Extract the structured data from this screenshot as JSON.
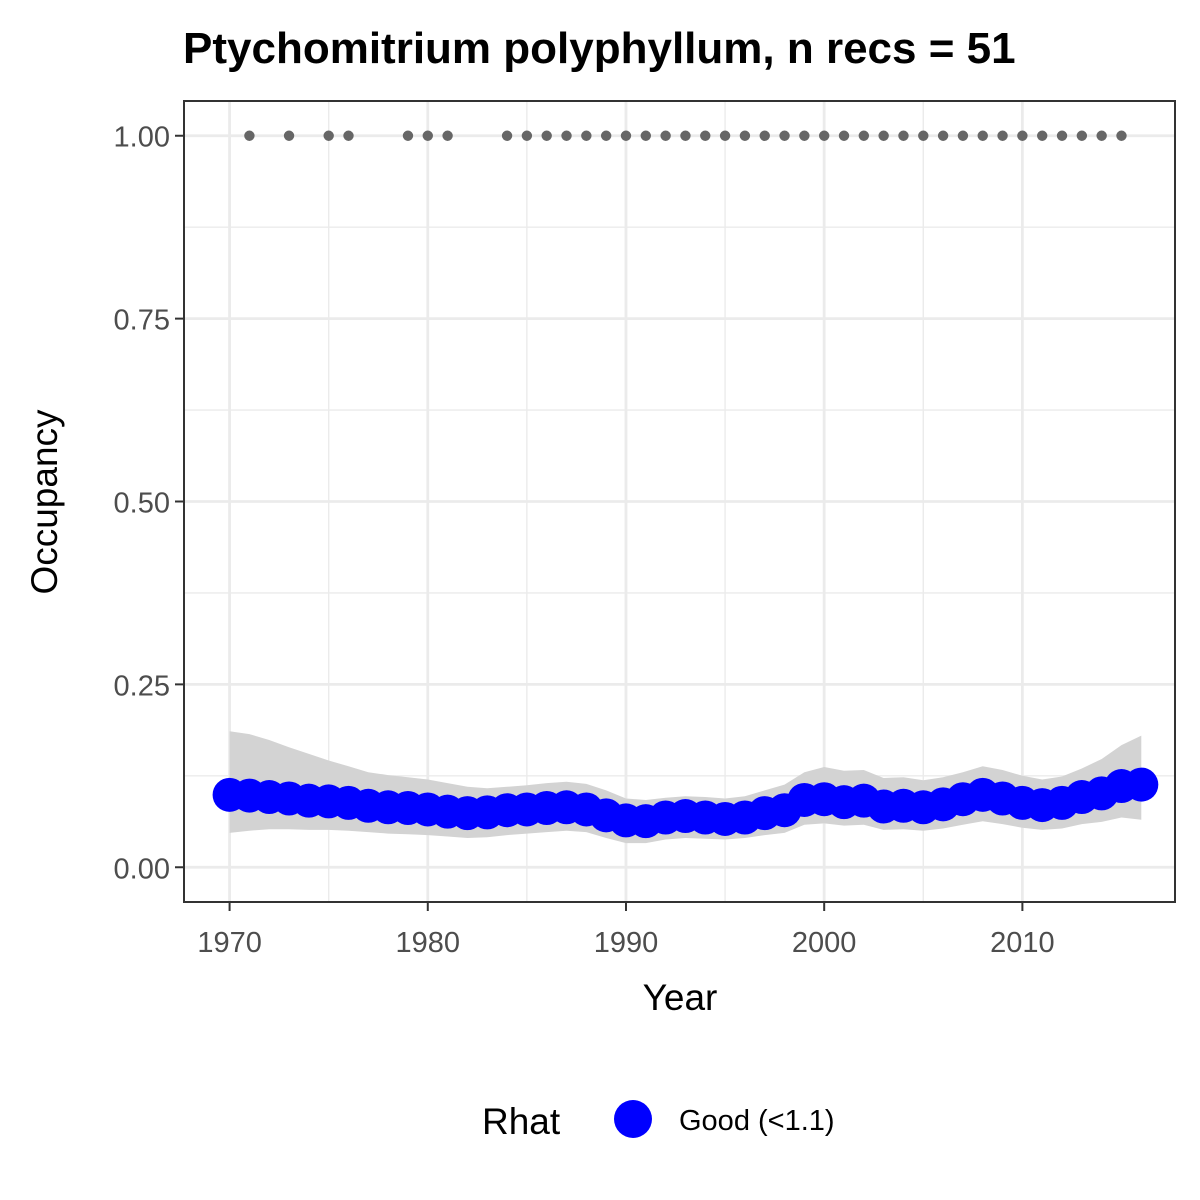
{
  "chart_data": {
    "type": "line",
    "title": "Ptychomitrium polyphyllum, n recs = 51",
    "xlabel": "Year",
    "ylabel": "Occupancy",
    "xlim": [
      1967.7,
      2017.7
    ],
    "ylim": [
      -0.0475,
      1.0475
    ],
    "xticks": [
      1970,
      1980,
      1990,
      2000,
      2010
    ],
    "xtick_labels": [
      "1970",
      "1980",
      "1990",
      "2000",
      "2010"
    ],
    "yticks": [
      0,
      0.25,
      0.5,
      0.75,
      1
    ],
    "ytick_labels": [
      "0.00",
      "0.25",
      "0.50",
      "0.75",
      "1.00"
    ],
    "grid": true,
    "legend_position": "bottom",
    "colors": {
      "occupancy_points": "#0000ff",
      "ribbon": "#d3d3d3",
      "record_points": "#666666",
      "grid": "#ebebeb",
      "panel_border": "#333333"
    },
    "series": [
      {
        "kind": "points",
        "x": [
          1970,
          1971,
          1972,
          1973,
          1974,
          1975,
          1976,
          1977,
          1978,
          1979,
          1980,
          1981,
          1982,
          1983,
          1984,
          1985,
          1986,
          1987,
          1988,
          1989,
          1990,
          1991,
          1992,
          1993,
          1994,
          1995,
          1996,
          1997,
          1998,
          1999,
          2000,
          2001,
          2002,
          2003,
          2004,
          2005,
          2006,
          2007,
          2008,
          2009,
          2010,
          2011,
          2012,
          2013,
          2014,
          2015,
          2016
        ],
        "y": [
          0.099,
          0.098,
          0.096,
          0.094,
          0.091,
          0.09,
          0.088,
          0.084,
          0.082,
          0.081,
          0.079,
          0.076,
          0.074,
          0.075,
          0.078,
          0.079,
          0.081,
          0.082,
          0.079,
          0.071,
          0.064,
          0.063,
          0.068,
          0.07,
          0.068,
          0.066,
          0.068,
          0.074,
          0.078,
          0.092,
          0.093,
          0.089,
          0.091,
          0.083,
          0.084,
          0.082,
          0.086,
          0.093,
          0.099,
          0.094,
          0.088,
          0.085,
          0.088,
          0.096,
          0.101,
          0.111,
          0.113
        ]
      },
      {
        "kind": "ribbon",
        "x": [
          1970,
          1971,
          1972,
          1973,
          1974,
          1975,
          1976,
          1977,
          1978,
          1979,
          1980,
          1981,
          1982,
          1983,
          1984,
          1985,
          1986,
          1987,
          1988,
          1989,
          1990,
          1991,
          1992,
          1993,
          1994,
          1995,
          1996,
          1997,
          1998,
          1999,
          2000,
          2001,
          2002,
          2003,
          2004,
          2005,
          2006,
          2007,
          2008,
          2009,
          2010,
          2011,
          2012,
          2013,
          2014,
          2015,
          2016
        ],
        "lower": [
          0.047,
          0.05,
          0.052,
          0.052,
          0.051,
          0.051,
          0.05,
          0.048,
          0.046,
          0.045,
          0.044,
          0.042,
          0.04,
          0.041,
          0.044,
          0.046,
          0.048,
          0.05,
          0.048,
          0.04,
          0.033,
          0.033,
          0.038,
          0.04,
          0.039,
          0.038,
          0.04,
          0.044,
          0.047,
          0.058,
          0.06,
          0.057,
          0.058,
          0.051,
          0.052,
          0.05,
          0.053,
          0.058,
          0.063,
          0.059,
          0.054,
          0.051,
          0.053,
          0.059,
          0.062,
          0.068,
          0.065
        ],
        "upper": [
          0.186,
          0.182,
          0.174,
          0.164,
          0.155,
          0.146,
          0.138,
          0.13,
          0.126,
          0.123,
          0.12,
          0.115,
          0.11,
          0.108,
          0.11,
          0.112,
          0.115,
          0.117,
          0.114,
          0.105,
          0.094,
          0.092,
          0.095,
          0.097,
          0.096,
          0.094,
          0.097,
          0.105,
          0.113,
          0.13,
          0.137,
          0.132,
          0.133,
          0.122,
          0.123,
          0.119,
          0.123,
          0.13,
          0.138,
          0.133,
          0.125,
          0.12,
          0.124,
          0.135,
          0.148,
          0.167,
          0.18
        ]
      },
      {
        "kind": "record_years",
        "x": [
          1971,
          1973,
          1975,
          1976,
          1979,
          1980,
          1981,
          1984,
          1985,
          1986,
          1987,
          1988,
          1989,
          1990,
          1991,
          1992,
          1993,
          1994,
          1995,
          1996,
          1997,
          1998,
          1999,
          2000,
          2001,
          2002,
          2003,
          2004,
          2005,
          2006,
          2007,
          2008,
          2009,
          2010,
          2011,
          2012,
          2013,
          2014,
          2015
        ],
        "y": 1
      }
    ],
    "legend": {
      "title": "Rhat",
      "entries": [
        {
          "label": "Good (<1.1)",
          "color": "#0000ff"
        }
      ]
    }
  }
}
